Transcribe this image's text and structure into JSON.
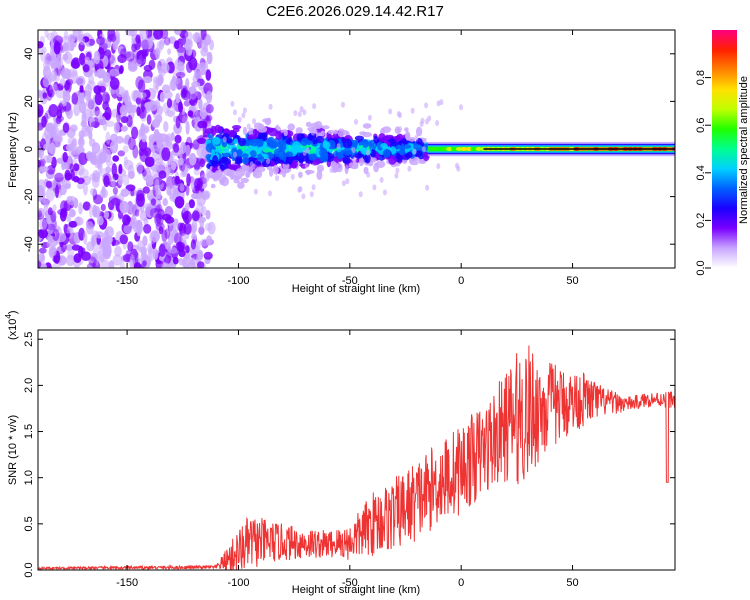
{
  "title": "C2E6.2026.029.14.42.R17",
  "chart_data": [
    {
      "type": "heatmap",
      "name": "spectrogram",
      "xlabel": "Height of straight line (km)",
      "ylabel": "Frequency (Hz)",
      "xlim": [
        -190,
        96
      ],
      "ylim": [
        -50,
        50
      ],
      "xticks": [
        -150,
        -100,
        -50,
        0,
        50
      ],
      "yticks": [
        -40,
        -20,
        0,
        20,
        40
      ],
      "colorbar": {
        "label": "Normalized spectral amplitude",
        "range": [
          0,
          1
        ],
        "ticks": [
          "0.0",
          "0.2",
          "0.4",
          "0.6",
          "0.8"
        ],
        "colors": [
          "#ffffff",
          "#c9a6ff",
          "#7a00ff",
          "#1a00ff",
          "#0060ff",
          "#00d0ff",
          "#00ff90",
          "#20ff00",
          "#c0ff00",
          "#ffe000",
          "#ff8000",
          "#ff2000",
          "#ff0080"
        ]
      },
      "regions": [
        {
          "x_range": [
            -190,
            -113
          ],
          "description_level": "broadband noise",
          "max_amplitude": 0.2
        },
        {
          "x_range": [
            -113,
            -15
          ],
          "center_freq": 0,
          "freq_spread": 10,
          "max_amplitude": 0.45
        },
        {
          "x_range": [
            -15,
            96
          ],
          "center_freq": 0,
          "freq_spread": 2,
          "max_amplitude": 0.95
        }
      ]
    },
    {
      "type": "line",
      "name": "snr",
      "xlabel": "Height of straight line (km)",
      "ylabel": "SNR (10 * v/v)",
      "multiplier_label": "(x10",
      "multiplier_exp": "4",
      "xlim": [
        -190,
        96
      ],
      "ylim": [
        0,
        2.6
      ],
      "xticks": [
        -150,
        -100,
        -50,
        0,
        50
      ],
      "yticks": [
        "0.0",
        "0.5",
        "1.0",
        "1.5",
        "2.0",
        "2.5"
      ],
      "color": "#ee3333",
      "envelope": {
        "x": [
          -190,
          -110,
          -100,
          -95,
          -80,
          -60,
          -50,
          -40,
          -30,
          -20,
          -10,
          0,
          10,
          20,
          28,
          35,
          45,
          55,
          65,
          75,
          85,
          96
        ],
        "mean": [
          0.02,
          0.03,
          0.2,
          0.3,
          0.3,
          0.28,
          0.3,
          0.5,
          0.6,
          0.75,
          0.95,
          1.1,
          1.3,
          1.55,
          1.7,
          1.75,
          1.8,
          1.85,
          1.82,
          1.8,
          1.85,
          1.85
        ],
        "amp": [
          0.01,
          0.02,
          0.25,
          0.3,
          0.2,
          0.15,
          0.2,
          0.35,
          0.4,
          0.45,
          0.45,
          0.5,
          0.5,
          0.6,
          0.8,
          0.6,
          0.4,
          0.3,
          0.15,
          0.08,
          0.08,
          0.1
        ]
      }
    }
  ]
}
